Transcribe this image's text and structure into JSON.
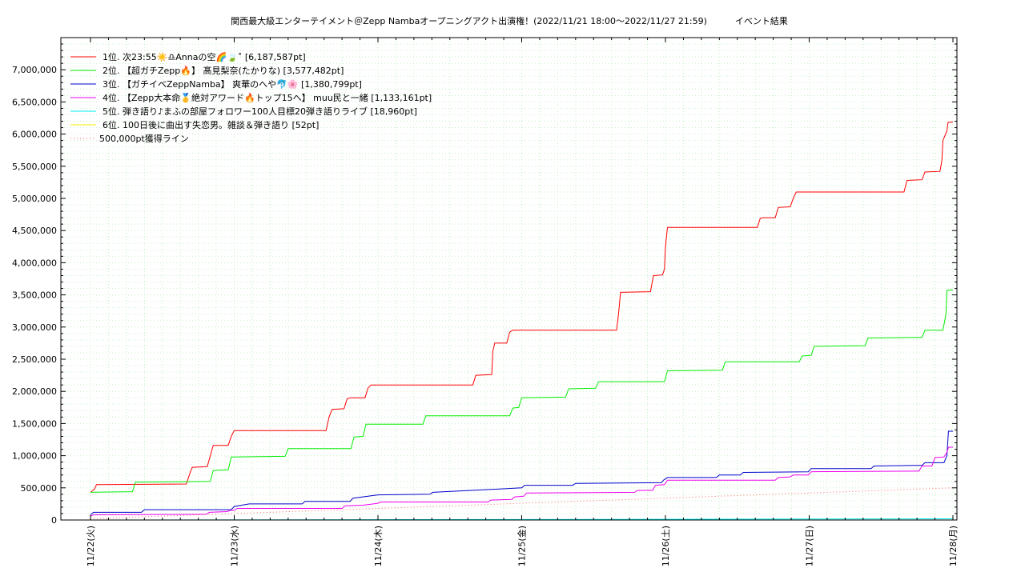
{
  "chart_data": {
    "type": "line",
    "title": "関西最大級エンターテイメント＠Zepp Nambaオープニングアクト出演権！(2022/11/21 18:00～2022/11/27 21:59)",
    "subtitle": "イベント結果",
    "xlabel": "",
    "ylabel": "",
    "x_range": [
      "2022-11-22 00:00",
      "2022-11-28 00:00"
    ],
    "ylim": [
      0,
      7500000
    ],
    "y_ticks": [
      0,
      500000,
      1000000,
      1500000,
      2000000,
      2500000,
      3000000,
      3500000,
      4000000,
      4500000,
      5000000,
      5500000,
      6000000,
      6500000,
      7000000
    ],
    "y_tick_labels": [
      "0",
      "500,000",
      "1,000,000",
      "1,500,000",
      "2,000,000",
      "2,500,000",
      "3,000,000",
      "3,500,000",
      "4,000,000",
      "4,500,000",
      "5,000,000",
      "5,500,000",
      "6,000,000",
      "6,500,000",
      "7,000,000"
    ],
    "x_tick_labels": [
      "11/22(火)",
      "11/23(水)",
      "11/24(木)",
      "11/25(金)",
      "11/26(土)",
      "11/27(日)",
      "11/28(月)"
    ],
    "x_tick_dates": [
      "2022-11-22 00:00",
      "2022-11-23 00:00",
      "2022-11-24 00:00",
      "2022-11-25 00:00",
      "2022-11-26 00:00",
      "2022-11-27 00:00",
      "2022-11-28 00:00"
    ],
    "grid": true,
    "legend_position": "top-left",
    "series": [
      {
        "name": "1位. 次23:55☀️♎Annaの空🌈🍃˚ [6,187,587pt]",
        "color": "#ff0000",
        "points": [
          [
            "2022-11-22 00:00",
            430000
          ],
          [
            "2022-11-22 00:40",
            480000
          ],
          [
            "2022-11-22 01:00",
            550000
          ],
          [
            "2022-11-22 16:00",
            560000
          ],
          [
            "2022-11-22 16:30",
            700000
          ],
          [
            "2022-11-22 17:00",
            820000
          ],
          [
            "2022-11-22 19:30",
            830000
          ],
          [
            "2022-11-22 20:00",
            1000000
          ],
          [
            "2022-11-22 20:30",
            1160000
          ],
          [
            "2022-11-22 23:00",
            1160000
          ],
          [
            "2022-11-22 23:30",
            1300000
          ],
          [
            "2022-11-23 00:00",
            1390000
          ],
          [
            "2022-11-23 15:20",
            1390000
          ],
          [
            "2022-11-23 15:50",
            1600000
          ],
          [
            "2022-11-23 16:20",
            1720000
          ],
          [
            "2022-11-23 18:20",
            1730000
          ],
          [
            "2022-11-23 18:50",
            1880000
          ],
          [
            "2022-11-23 19:20",
            1900000
          ],
          [
            "2022-11-23 21:50",
            1900000
          ],
          [
            "2022-11-23 22:20",
            2050000
          ],
          [
            "2022-11-23 22:50",
            2100000
          ],
          [
            "2022-11-24 15:50",
            2100000
          ],
          [
            "2022-11-24 16:20",
            2250000
          ],
          [
            "2022-11-24 19:00",
            2260000
          ],
          [
            "2022-11-24 19:10",
            2620000
          ],
          [
            "2022-11-24 19:30",
            2750000
          ],
          [
            "2022-11-24 21:30",
            2750000
          ],
          [
            "2022-11-24 22:00",
            2920000
          ],
          [
            "2022-11-24 22:30",
            2950000
          ],
          [
            "2022-11-25 15:50",
            2950000
          ],
          [
            "2022-11-25 16:10",
            3200000
          ],
          [
            "2022-11-25 16:30",
            3540000
          ],
          [
            "2022-11-25 21:30",
            3550000
          ],
          [
            "2022-11-25 22:00",
            3800000
          ],
          [
            "2022-11-25 23:30",
            3810000
          ],
          [
            "2022-11-25 23:50",
            3900000
          ],
          [
            "2022-11-26 00:00",
            4250000
          ],
          [
            "2022-11-26 00:20",
            4550000
          ],
          [
            "2022-11-26 15:20",
            4550000
          ],
          [
            "2022-11-26 15:50",
            4690000
          ],
          [
            "2022-11-26 16:20",
            4700000
          ],
          [
            "2022-11-26 18:20",
            4700000
          ],
          [
            "2022-11-26 18:50",
            4860000
          ],
          [
            "2022-11-26 20:50",
            4870000
          ],
          [
            "2022-11-26 21:20",
            5000000
          ],
          [
            "2022-11-26 21:50",
            5100000
          ],
          [
            "2022-11-27 15:50",
            5100000
          ],
          [
            "2022-11-27 16:20",
            5280000
          ],
          [
            "2022-11-27 18:50",
            5290000
          ],
          [
            "2022-11-27 19:20",
            5410000
          ],
          [
            "2022-11-27 21:50",
            5420000
          ],
          [
            "2022-11-27 22:10",
            5600000
          ],
          [
            "2022-11-27 22:20",
            5900000
          ],
          [
            "2022-11-27 23:00",
            6050000
          ],
          [
            "2022-11-27 23:10",
            6180000
          ],
          [
            "2022-11-28 00:00",
            6187587
          ]
        ]
      },
      {
        "name": "2位. 【超ガチZepp🔥】 髙見梨奈(たかりな) [3,577,482pt]",
        "color": "#00ee00",
        "points": [
          [
            "2022-11-22 00:00",
            430000
          ],
          [
            "2022-11-22 07:00",
            440000
          ],
          [
            "2022-11-22 07:30",
            590000
          ],
          [
            "2022-11-22 20:00",
            600000
          ],
          [
            "2022-11-22 20:30",
            770000
          ],
          [
            "2022-11-22 23:00",
            780000
          ],
          [
            "2022-11-22 23:30",
            980000
          ],
          [
            "2022-11-23 08:30",
            990000
          ],
          [
            "2022-11-23 09:00",
            1110000
          ],
          [
            "2022-11-23 19:30",
            1110000
          ],
          [
            "2022-11-23 20:00",
            1290000
          ],
          [
            "2022-11-23 21:30",
            1300000
          ],
          [
            "2022-11-23 22:00",
            1490000
          ],
          [
            "2022-11-24 07:30",
            1490000
          ],
          [
            "2022-11-24 08:00",
            1620000
          ],
          [
            "2022-11-24 22:00",
            1620000
          ],
          [
            "2022-11-24 22:30",
            1740000
          ],
          [
            "2022-11-24 23:30",
            1750000
          ],
          [
            "2022-11-25 00:00",
            1900000
          ],
          [
            "2022-11-25 07:20",
            1910000
          ],
          [
            "2022-11-25 07:50",
            2040000
          ],
          [
            "2022-11-25 12:20",
            2050000
          ],
          [
            "2022-11-25 12:50",
            2150000
          ],
          [
            "2022-11-25 23:50",
            2150000
          ],
          [
            "2022-11-26 00:20",
            2320000
          ],
          [
            "2022-11-26 09:30",
            2330000
          ],
          [
            "2022-11-26 10:00",
            2460000
          ],
          [
            "2022-11-26 22:20",
            2460000
          ],
          [
            "2022-11-26 22:50",
            2550000
          ],
          [
            "2022-11-27 00:20",
            2560000
          ],
          [
            "2022-11-27 00:50",
            2700000
          ],
          [
            "2022-11-27 09:20",
            2710000
          ],
          [
            "2022-11-27 09:50",
            2830000
          ],
          [
            "2022-11-27 18:50",
            2840000
          ],
          [
            "2022-11-27 19:20",
            2950000
          ],
          [
            "2022-11-27 22:20",
            2950000
          ],
          [
            "2022-11-27 22:50",
            3200000
          ],
          [
            "2022-11-27 23:00",
            3570000
          ],
          [
            "2022-11-28 00:00",
            3577482
          ]
        ]
      },
      {
        "name": "3位. 【ガチイベZeppNamba】 爽華のへや🐬🌸 [1,380,799pt]",
        "color": "#0000cc",
        "points": [
          [
            "2022-11-22 00:00",
            80000
          ],
          [
            "2022-11-22 00:30",
            120000
          ],
          [
            "2022-11-22 08:30",
            120000
          ],
          [
            "2022-11-22 09:00",
            160000
          ],
          [
            "2022-11-22 23:30",
            160000
          ],
          [
            "2022-11-23 00:00",
            210000
          ],
          [
            "2022-11-23 02:30",
            250000
          ],
          [
            "2022-11-23 11:20",
            250000
          ],
          [
            "2022-11-23 11:50",
            290000
          ],
          [
            "2022-11-23 19:20",
            290000
          ],
          [
            "2022-11-23 19:50",
            340000
          ],
          [
            "2022-11-24 00:00",
            390000
          ],
          [
            "2022-11-24 08:40",
            400000
          ],
          [
            "2022-11-24 09:10",
            430000
          ],
          [
            "2022-11-25 00:00",
            500000
          ],
          [
            "2022-11-25 00:30",
            540000
          ],
          [
            "2022-11-25 08:30",
            540000
          ],
          [
            "2022-11-25 09:00",
            570000
          ],
          [
            "2022-11-25 23:20",
            580000
          ],
          [
            "2022-11-25 23:40",
            620000
          ],
          [
            "2022-11-26 00:20",
            660000
          ],
          [
            "2022-11-26 08:30",
            660000
          ],
          [
            "2022-11-26 09:00",
            700000
          ],
          [
            "2022-11-26 12:30",
            700000
          ],
          [
            "2022-11-26 13:00",
            740000
          ],
          [
            "2022-11-26 23:50",
            750000
          ],
          [
            "2022-11-27 00:20",
            800000
          ],
          [
            "2022-11-27 10:20",
            800000
          ],
          [
            "2022-11-27 10:50",
            840000
          ],
          [
            "2022-11-27 18:50",
            850000
          ],
          [
            "2022-11-27 19:20",
            890000
          ],
          [
            "2022-11-27 22:30",
            890000
          ],
          [
            "2022-11-27 23:00",
            1000000
          ],
          [
            "2022-11-27 23:15",
            1380000
          ],
          [
            "2022-11-28 00:00",
            1380799
          ]
        ]
      },
      {
        "name": "4位. 【Zepp大本命🥇絶対アワード🔥トップ15へ】 muu民と一緒 [1,133,161pt]",
        "color": "#ee00ee",
        "points": [
          [
            "2022-11-22 00:00",
            60000
          ],
          [
            "2022-11-22 00:30",
            80000
          ],
          [
            "2022-11-22 19:20",
            90000
          ],
          [
            "2022-11-22 19:50",
            120000
          ],
          [
            "2022-11-22 22:50",
            130000
          ],
          [
            "2022-11-22 23:20",
            150000
          ],
          [
            "2022-11-23 00:00",
            150000
          ],
          [
            "2022-11-23 00:30",
            180000
          ],
          [
            "2022-11-23 18:00",
            180000
          ],
          [
            "2022-11-23 18:30",
            220000
          ],
          [
            "2022-11-23 21:30",
            230000
          ],
          [
            "2022-11-24 00:00",
            260000
          ],
          [
            "2022-11-24 00:30",
            280000
          ],
          [
            "2022-11-24 18:20",
            280000
          ],
          [
            "2022-11-24 18:50",
            310000
          ],
          [
            "2022-11-24 22:20",
            320000
          ],
          [
            "2022-11-24 22:50",
            360000
          ],
          [
            "2022-11-25 00:20",
            370000
          ],
          [
            "2022-11-25 00:50",
            420000
          ],
          [
            "2022-11-25 18:50",
            430000
          ],
          [
            "2022-11-25 19:20",
            460000
          ],
          [
            "2022-11-25 21:50",
            460000
          ],
          [
            "2022-11-25 22:20",
            540000
          ],
          [
            "2022-11-25 23:50",
            550000
          ],
          [
            "2022-11-26 00:20",
            620000
          ],
          [
            "2022-11-26 18:20",
            620000
          ],
          [
            "2022-11-26 18:50",
            660000
          ],
          [
            "2022-11-26 20:50",
            670000
          ],
          [
            "2022-11-26 21:20",
            700000
          ],
          [
            "2022-11-26 23:50",
            700000
          ],
          [
            "2022-11-27 00:20",
            750000
          ],
          [
            "2022-11-27 18:20",
            760000
          ],
          [
            "2022-11-27 18:50",
            840000
          ],
          [
            "2022-11-27 20:30",
            840000
          ],
          [
            "2022-11-27 21:00",
            970000
          ],
          [
            "2022-11-27 22:30",
            980000
          ],
          [
            "2022-11-27 23:00",
            1050000
          ],
          [
            "2022-11-27 23:15",
            1130000
          ],
          [
            "2022-11-28 00:00",
            1133161
          ]
        ]
      },
      {
        "name": "5位. 弾き語り♪まふの部屋フォロワー100人目標20弾き語りライブ [18,960pt]",
        "color": "#00eeee",
        "points": [
          [
            "2022-11-22 00:00",
            0
          ],
          [
            "2022-11-25 00:00",
            8000
          ],
          [
            "2022-11-28 00:00",
            18960
          ]
        ]
      },
      {
        "name": "6位. 100日後に曲出す失恋男。雑談＆弾き語り [52pt]",
        "color": "#eeee00",
        "points": [
          [
            "2022-11-22 00:00",
            0
          ],
          [
            "2022-11-28 00:00",
            52
          ]
        ]
      },
      {
        "name": "500,000pt獲得ライン",
        "color": "#ff6666",
        "dashed": true,
        "points": [
          [
            "2022-11-22 00:00",
            20000
          ],
          [
            "2022-11-28 00:00",
            500000
          ]
        ]
      }
    ]
  }
}
